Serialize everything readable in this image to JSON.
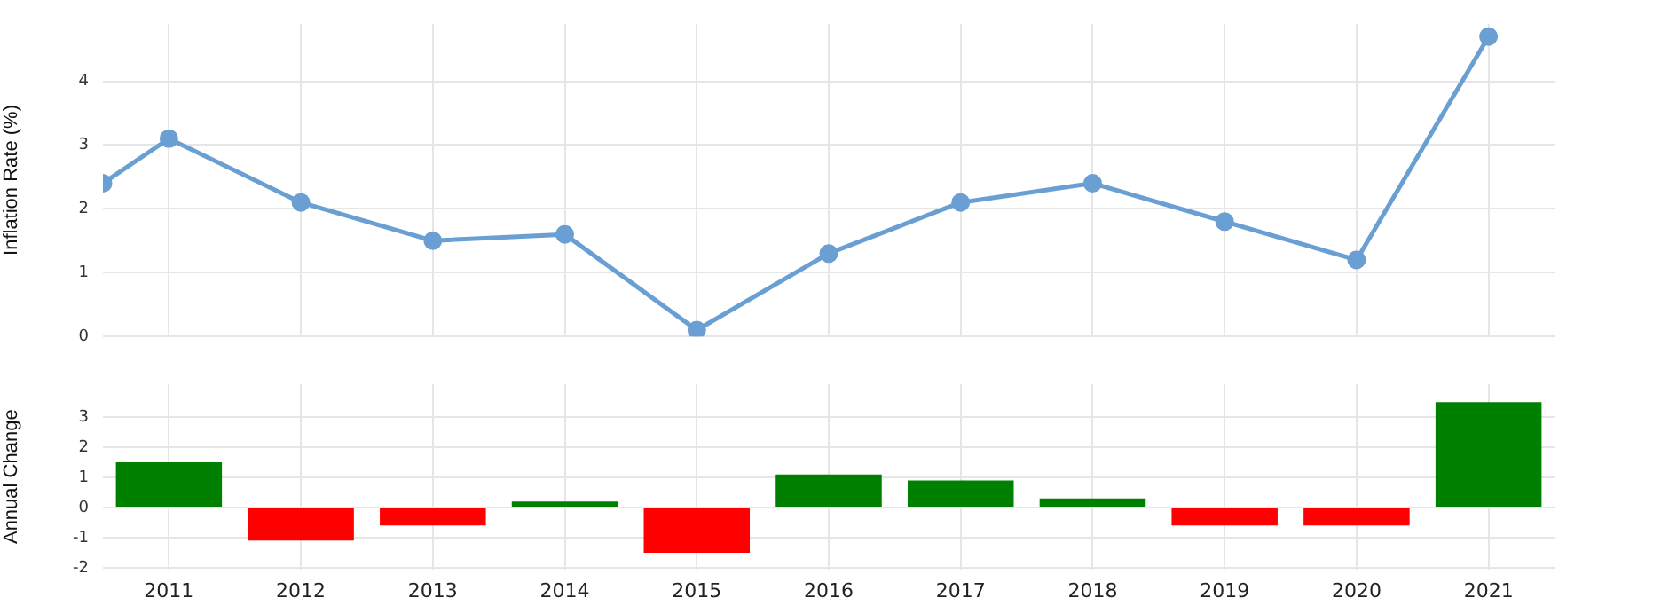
{
  "chart_data": [
    {
      "type": "line",
      "ylabel": "Inflation Rate (%)",
      "x": [
        2010.5,
        2011,
        2012,
        2013,
        2014,
        2015,
        2016,
        2017,
        2018,
        2019,
        2020,
        2021
      ],
      "series": [
        {
          "color": "#6a9fd4",
          "values": [
            2.4,
            3.1,
            2.1,
            1.5,
            1.6,
            0.1,
            1.3,
            2.1,
            2.4,
            1.8,
            1.2,
            4.7
          ]
        }
      ],
      "xlim": [
        2010.5,
        2021.5
      ],
      "xticks": [
        2011,
        2012,
        2013,
        2014,
        2015,
        2016,
        2017,
        2018,
        2019,
        2020,
        2021
      ],
      "ylim": [
        0,
        4.9
      ],
      "yticks": [
        0,
        1,
        2,
        3,
        4
      ],
      "tick_labels": "y",
      "grid": true,
      "legend": false,
      "marker": "circle",
      "line_style": "solid"
    },
    {
      "type": "bar",
      "ylabel": "Annual Change",
      "categories": [
        "2011",
        "2012",
        "2013",
        "2014",
        "2015",
        "2016",
        "2017",
        "2018",
        "2019",
        "2020",
        "2021"
      ],
      "values": [
        1.5,
        -1.1,
        -0.6,
        0.2,
        -1.5,
        1.1,
        0.9,
        0.3,
        -0.6,
        -0.6,
        3.5
      ],
      "colors": [
        "#008000",
        "#ff0000",
        "#ff0000",
        "#008000",
        "#ff0000",
        "#008000",
        "#008000",
        "#008000",
        "#ff0000",
        "#ff0000",
        "#008000"
      ],
      "ylim": [
        -2.05,
        4.1
      ],
      "yticks": [
        -2,
        -1,
        0,
        1,
        2,
        3
      ],
      "grid": true,
      "legend": false
    }
  ]
}
